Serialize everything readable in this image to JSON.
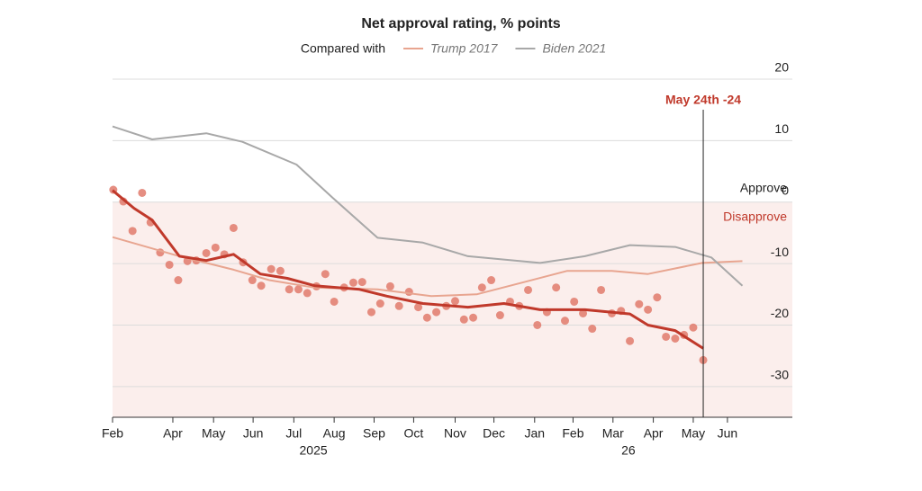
{
  "chart_data": {
    "type": "line",
    "title": "Net approval rating, % points",
    "legend_prefix": "Compared with",
    "xlim": [
      0,
      17.7
    ],
    "ylim": [
      -35,
      20
    ],
    "yticks": [
      20,
      10,
      0,
      -10,
      -20,
      -30
    ],
    "xticks": [
      {
        "value": 0,
        "label": "Feb"
      },
      {
        "value": 1.57,
        "label": "Apr"
      },
      {
        "value": 2.63,
        "label": "May"
      },
      {
        "value": 3.66,
        "label": "Jun"
      },
      {
        "value": 4.72,
        "label": "Jul"
      },
      {
        "value": 5.77,
        "label": "Aug"
      },
      {
        "value": 6.81,
        "label": "Sep"
      },
      {
        "value": 7.84,
        "label": "Oct"
      },
      {
        "value": 8.92,
        "label": "Nov"
      },
      {
        "value": 9.93,
        "label": "Dec"
      },
      {
        "value": 10.99,
        "label": "Jan"
      },
      {
        "value": 11.99,
        "label": "Feb"
      },
      {
        "value": 13.03,
        "label": "Mar"
      },
      {
        "value": 14.08,
        "label": "Apr"
      },
      {
        "value": 15.12,
        "label": "May"
      },
      {
        "value": 16.01,
        "label": "Jun"
      }
    ],
    "year_labels": [
      {
        "value": 5.23,
        "label": "2025"
      },
      {
        "value": 13.43,
        "label": "26"
      }
    ],
    "grid": true,
    "zero_labels": {
      "above": "Approve",
      "below": "Disapprove"
    },
    "annotation": {
      "x": 15.38,
      "label": "May 24th -24",
      "color": "#c0392b"
    },
    "series": [
      {
        "name": "Trump 2017",
        "color": "#e8a590",
        "x": [
          0,
          1.74,
          3.15,
          4.08,
          5.26,
          6.9,
          8.3,
          9.48,
          10.66,
          11.83,
          13.0,
          13.94,
          15.35,
          16.4
        ],
        "values": [
          -5.7,
          -8.8,
          -11,
          -12.7,
          -13.9,
          -14.2,
          -15.3,
          -15,
          -13.1,
          -11.2,
          -11.2,
          -11.7,
          -9.9,
          -9.6
        ]
      },
      {
        "name": "Biden 2021",
        "color": "#a8a8a8",
        "x": [
          0,
          1.03,
          2.44,
          3.38,
          4.79,
          5.73,
          6.9,
          8.08,
          9.25,
          11.13,
          12.3,
          13.47,
          14.65,
          15.59,
          16.4
        ],
        "values": [
          12.3,
          10.2,
          11.2,
          9.8,
          6.1,
          0.7,
          -5.8,
          -6.6,
          -8.8,
          -9.9,
          -8.8,
          -7,
          -7.3,
          -9,
          -13.6
        ]
      },
      {
        "color": "#c0392b",
        "x": [
          0,
          0.56,
          1.03,
          1.74,
          2.44,
          3.15,
          3.85,
          4.55,
          5.26,
          6.43,
          7.14,
          8.08,
          9.25,
          10.19,
          11.13,
          12.3,
          13.47,
          13.94,
          14.65,
          15.38
        ],
        "values": [
          1.9,
          -1,
          -2.9,
          -8.8,
          -9.5,
          -8.5,
          -11.7,
          -12.4,
          -13.6,
          -14.2,
          -15.3,
          -16.5,
          -17.1,
          -16.5,
          -17.5,
          -17.5,
          -18.2,
          -20,
          -20.9,
          -23.8
        ]
      }
    ],
    "points": {
      "color": "#e07a6c",
      "x": [
        0.02,
        0.28,
        0.52,
        0.77,
        0.99,
        1.24,
        1.48,
        1.71,
        1.95,
        2.18,
        2.44,
        2.68,
        2.91,
        3.15,
        3.4,
        3.64,
        3.87,
        4.13,
        4.37,
        4.6,
        4.84,
        5.07,
        5.31,
        5.54,
        5.77,
        6.03,
        6.27,
        6.5,
        6.74,
        6.97,
        7.23,
        7.46,
        7.72,
        7.96,
        8.19,
        8.43,
        8.69,
        8.92,
        9.15,
        9.39,
        9.62,
        9.86,
        10.09,
        10.35,
        10.59,
        10.82,
        11.06,
        11.31,
        11.55,
        11.78,
        12.02,
        12.25,
        12.49,
        12.72,
        13.0,
        13.24,
        13.47,
        13.71,
        13.94,
        14.18,
        14.41,
        14.65,
        14.88,
        15.12,
        15.38
      ],
      "values": [
        2.0,
        0.1,
        -4.7,
        1.5,
        -3.3,
        -8.2,
        -10.2,
        -12.7,
        -9.6,
        -9.5,
        -8.3,
        -7.4,
        -8.5,
        -4.2,
        -9.8,
        -12.7,
        -13.6,
        -10.9,
        -11.2,
        -14.2,
        -14.2,
        -14.8,
        -13.7,
        -11.7,
        -16.2,
        -13.9,
        -13.1,
        -13.0,
        -17.9,
        -16.5,
        -13.7,
        -16.9,
        -14.6,
        -17.1,
        -18.8,
        -17.9,
        -16.9,
        -16.1,
        -19.1,
        -18.8,
        -13.9,
        -12.7,
        -18.4,
        -16.2,
        -16.9,
        -14.3,
        -20.0,
        -17.9,
        -13.9,
        -19.3,
        -16.2,
        -18.1,
        -20.6,
        -14.3,
        -18.1,
        -17.7,
        -22.6,
        -16.6,
        -17.5,
        -15.5,
        -21.9,
        -22.2,
        -21.6,
        -20.4,
        -25.7
      ]
    }
  }
}
